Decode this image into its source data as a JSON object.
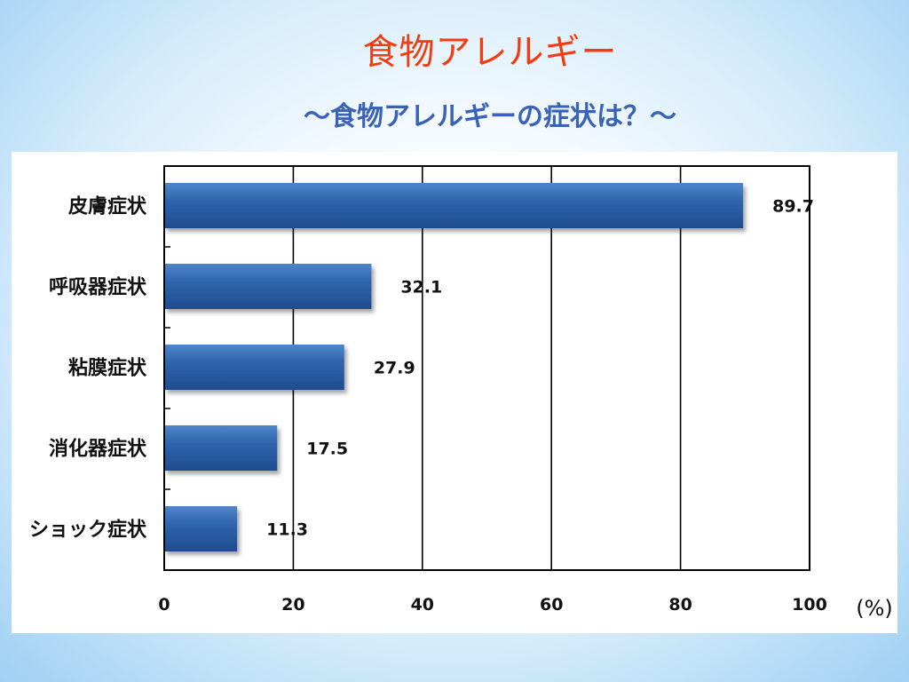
{
  "slide": {
    "title": "食物アレルギー",
    "subtitle": "～食物アレルギーの症状は？～"
  },
  "chart_data": {
    "type": "bar",
    "orientation": "horizontal",
    "categories": [
      "皮膚症状",
      "呼吸器症状",
      "粘膜症状",
      "消化器症状",
      "ショック症状"
    ],
    "values": [
      89.7,
      32.1,
      27.9,
      17.5,
      11.3
    ],
    "value_labels": [
      "89.7",
      "32.1",
      "27.9",
      "17.5",
      "11.3"
    ],
    "xticks": [
      "0",
      "20",
      "40",
      "60",
      "80",
      "100"
    ],
    "xlim": [
      0,
      100
    ],
    "unit_label": "(%)",
    "grid": "vertical",
    "bar_color": "#2f64ad"
  }
}
